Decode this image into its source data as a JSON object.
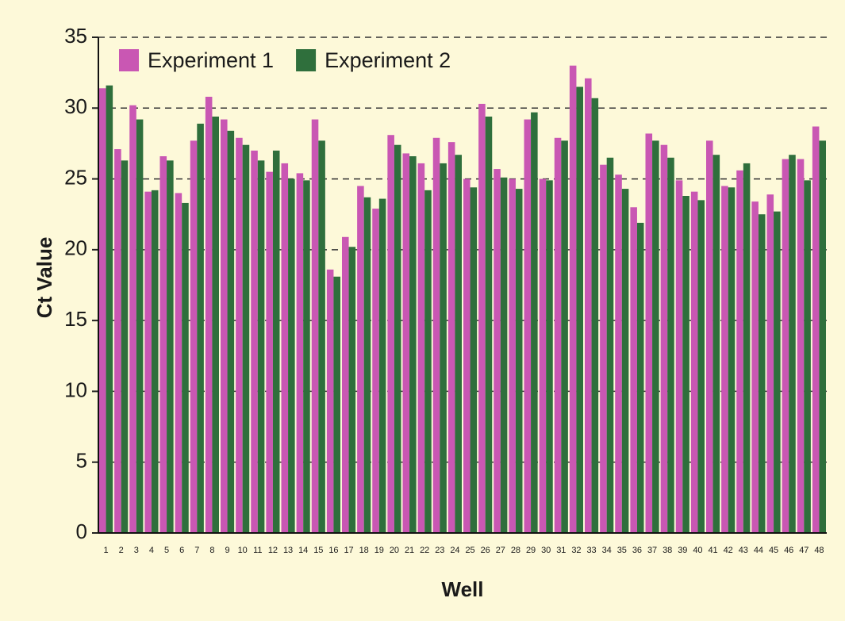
{
  "chart_data": {
    "type": "bar",
    "x_label": "Well",
    "y_label": "Ct Value",
    "categories": [
      "1",
      "2",
      "3",
      "4",
      "5",
      "6",
      "7",
      "8",
      "9",
      "10",
      "11",
      "12",
      "13",
      "14",
      "15",
      "16",
      "17",
      "18",
      "19",
      "20",
      "21",
      "22",
      "23",
      "24",
      "25",
      "26",
      "27",
      "28",
      "29",
      "30",
      "31",
      "32",
      "33",
      "34",
      "35",
      "36",
      "37",
      "38",
      "39",
      "40",
      "41",
      "42",
      "43",
      "44",
      "45",
      "46",
      "47",
      "48"
    ],
    "series": [
      {
        "name": "Experiment 1",
        "color": "#c957b3",
        "values": [
          31.4,
          27.1,
          30.2,
          24.1,
          26.6,
          24.0,
          27.7,
          30.8,
          29.2,
          27.9,
          27.0,
          25.5,
          26.1,
          25.4,
          29.2,
          18.6,
          20.9,
          24.5,
          22.9,
          28.1,
          26.8,
          26.1,
          27.9,
          27.6,
          25.0,
          30.3,
          25.7,
          25.0,
          29.2,
          25.0,
          27.9,
          33.0,
          32.1,
          26.0,
          25.3,
          23.0,
          28.2,
          27.4,
          24.9,
          24.1,
          27.7,
          24.5,
          25.6,
          23.4,
          23.9,
          26.4,
          26.4,
          28.7
        ]
      },
      {
        "name": "Experiment 2",
        "color": "#2f6f3c",
        "values": [
          31.6,
          26.3,
          29.2,
          24.2,
          26.3,
          23.3,
          28.9,
          29.4,
          28.4,
          27.4,
          26.3,
          27.0,
          25.0,
          24.9,
          27.7,
          18.1,
          20.2,
          23.7,
          23.6,
          27.4,
          26.6,
          24.2,
          26.1,
          26.7,
          24.4,
          29.4,
          25.1,
          24.3,
          29.7,
          24.9,
          27.7,
          31.5,
          30.7,
          26.5,
          24.3,
          21.9,
          27.7,
          26.5,
          23.8,
          23.5,
          26.7,
          24.4,
          26.1,
          22.5,
          22.7,
          26.7,
          24.9,
          27.7
        ]
      }
    ],
    "ylim": [
      0,
      35
    ],
    "yticks": [
      0,
      5,
      10,
      15,
      20,
      25,
      30,
      35
    ],
    "grid": true,
    "legend": "upper left"
  }
}
